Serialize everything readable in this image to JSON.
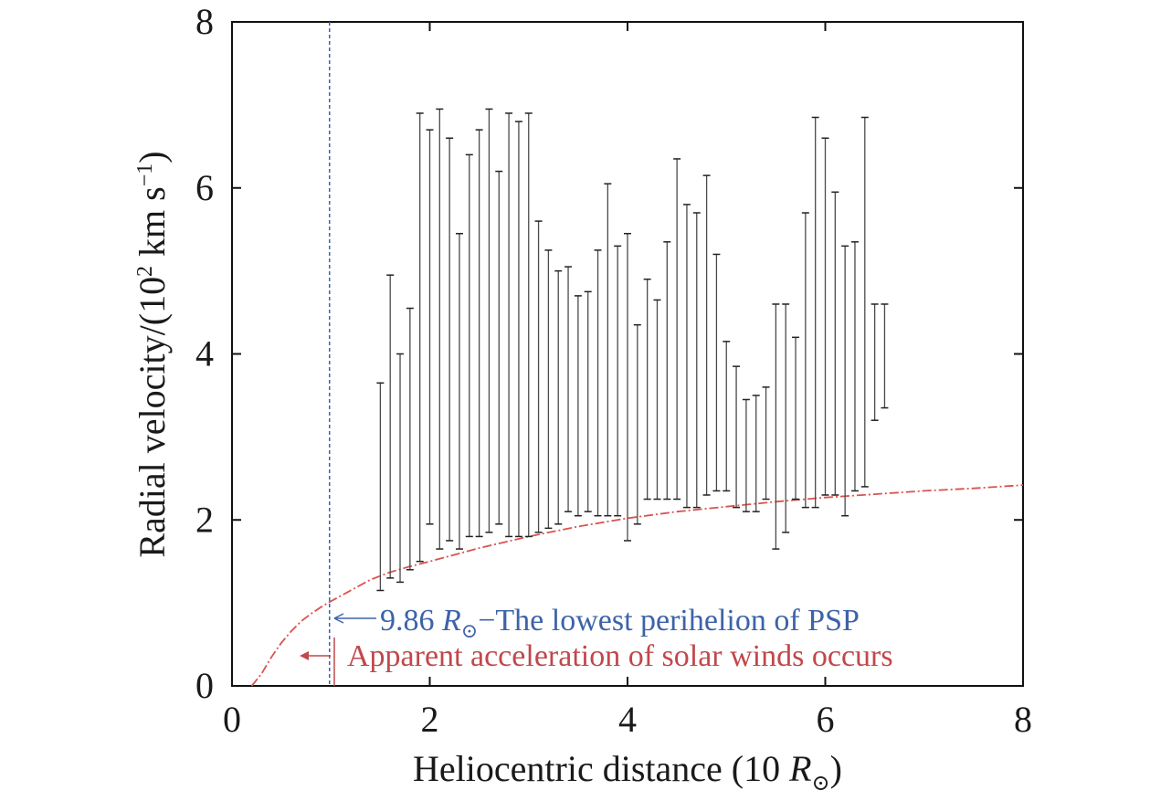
{
  "chart_data": {
    "type": "scatter",
    "xlabel_main": "Heliocentric distance (10 ",
    "xlabel_sym": "R",
    "xlabel_sub": "⊙",
    "xlabel_end": ")",
    "ylabel_main": "Radial velocity/(10",
    "ylabel_sup1": "2",
    "ylabel_mid": " km s",
    "ylabel_sup2": "−1",
    "ylabel_end": ")",
    "xlim": [
      0,
      8
    ],
    "ylim": [
      0,
      8
    ],
    "xticks": [
      "0",
      "2",
      "4",
      "6",
      "8"
    ],
    "yticks": [
      "0",
      "2",
      "4",
      "6",
      "8"
    ],
    "perihelion_x": 0.986,
    "annotations": {
      "perihelion_value": "9.86 ",
      "perihelion_sym": "R",
      "perihelion_sub": "⊙",
      "perihelion_text": "−The lowest perihelion of PSP",
      "acceleration_text": "Apparent acceleration of solar winds occurs"
    },
    "model_curve": {
      "x": [
        0.2,
        0.3,
        0.4,
        0.5,
        0.6,
        0.7,
        0.8,
        0.9,
        1.0,
        1.2,
        1.4,
        1.6,
        1.8,
        2.0,
        2.5,
        3.0,
        3.5,
        4.0,
        4.5,
        5.0,
        5.5,
        6.0,
        6.5,
        7.0,
        7.5,
        8.0
      ],
      "y": [
        0.0,
        0.15,
        0.35,
        0.52,
        0.66,
        0.78,
        0.87,
        0.95,
        1.02,
        1.15,
        1.28,
        1.37,
        1.44,
        1.5,
        1.66,
        1.8,
        1.92,
        2.02,
        2.1,
        2.16,
        2.22,
        2.27,
        2.31,
        2.35,
        2.38,
        2.42
      ],
      "color": "#d9534f"
    },
    "error_bars": {
      "x": [
        1.5,
        1.6,
        1.7,
        1.8,
        1.9,
        2.0,
        2.1,
        2.2,
        2.3,
        2.4,
        2.5,
        2.6,
        2.7,
        2.8,
        2.9,
        3.0,
        3.1,
        3.2,
        3.3,
        3.4,
        3.5,
        3.6,
        3.7,
        3.8,
        3.9,
        4.0,
        4.1,
        4.2,
        4.3,
        4.4,
        4.5,
        4.6,
        4.7,
        4.8,
        4.9,
        5.0,
        5.1,
        5.2,
        5.3,
        5.4,
        5.5,
        5.6,
        5.7,
        5.8,
        5.9,
        6.0,
        6.1,
        6.2,
        6.3,
        6.4,
        6.5,
        6.6
      ],
      "low": [
        1.15,
        1.3,
        1.25,
        1.4,
        1.5,
        1.95,
        1.65,
        1.75,
        1.65,
        1.8,
        1.8,
        1.85,
        1.95,
        1.8,
        1.8,
        1.8,
        1.85,
        1.9,
        1.95,
        2.1,
        2.05,
        2.1,
        2.05,
        2.05,
        2.05,
        1.75,
        1.95,
        2.25,
        2.25,
        2.25,
        2.25,
        2.15,
        2.15,
        2.3,
        2.35,
        2.35,
        2.15,
        2.1,
        2.1,
        2.25,
        1.65,
        1.85,
        2.25,
        2.15,
        2.15,
        2.3,
        2.3,
        2.05,
        2.35,
        2.4,
        3.2,
        3.35
      ],
      "high": [
        3.65,
        4.95,
        4.0,
        4.55,
        6.9,
        6.7,
        6.95,
        6.6,
        5.45,
        6.4,
        6.7,
        6.95,
        6.2,
        6.9,
        6.8,
        6.9,
        5.6,
        5.25,
        5.0,
        5.05,
        4.7,
        4.75,
        5.25,
        6.05,
        5.3,
        5.45,
        4.35,
        4.9,
        4.65,
        5.35,
        6.35,
        5.8,
        5.7,
        6.15,
        5.2,
        4.15,
        3.85,
        3.45,
        3.5,
        3.6,
        4.6,
        4.6,
        4.2,
        5.7,
        6.85,
        6.6,
        5.95,
        5.3,
        5.35,
        6.85,
        4.6,
        4.6
      ],
      "color": "#4a4a4a"
    }
  }
}
